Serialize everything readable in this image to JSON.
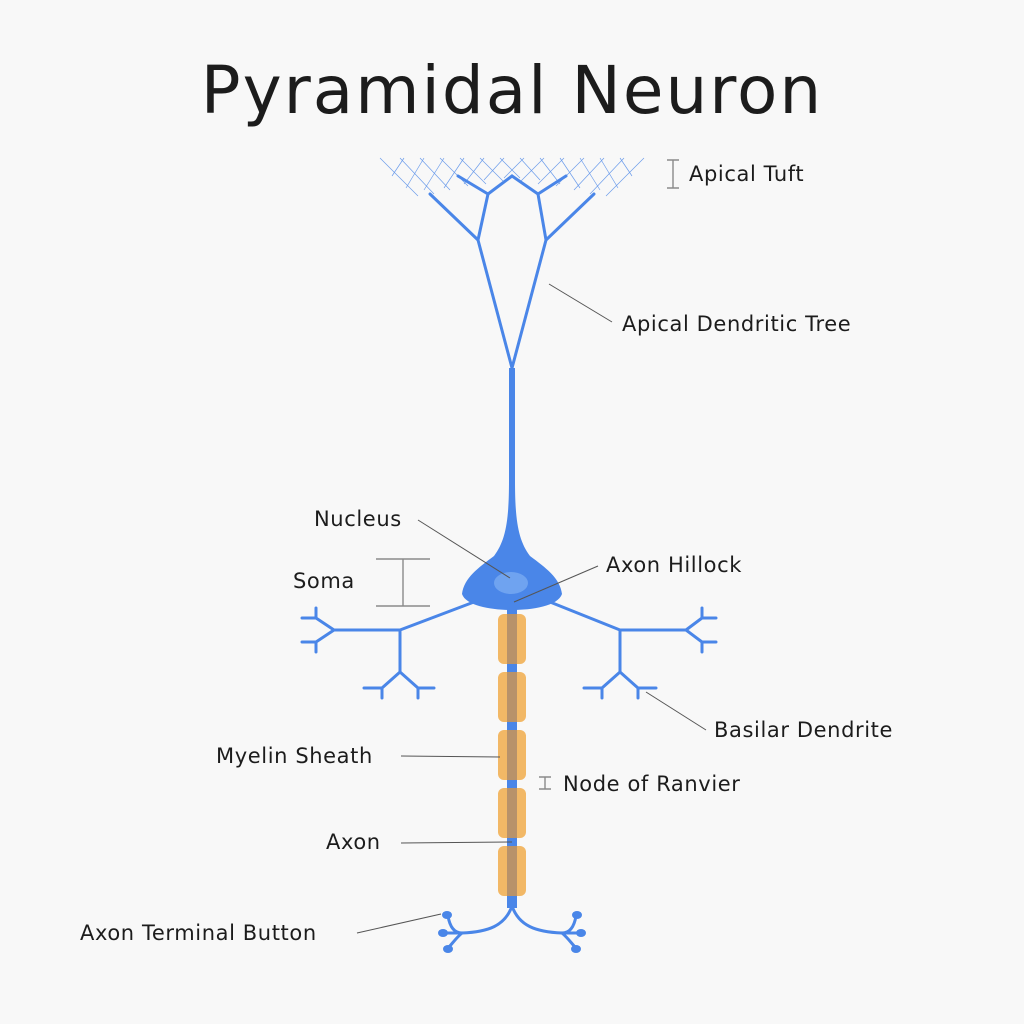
{
  "title": "Pyramidal Neuron",
  "labels": {
    "apical_tuft": "Apical Tuft",
    "apical_dendritic_tree": "Apical Dendritic Tree",
    "nucleus": "Nucleus",
    "soma": "Soma",
    "axon_hillock": "Axon Hillock",
    "basilar_dendrite": "Basilar Dendrite",
    "myelin_sheath": "Myelin Sheath",
    "node_of_ranvier": "Node of Ranvier",
    "axon": "Axon",
    "axon_terminal_button": "Axon Terminal Button"
  },
  "colors": {
    "background": "#f8f8f8",
    "neuron": "#4a86e8",
    "nucleus": "#6fa3f0",
    "myelin": "#f2b866",
    "myelin_overlay": "#b8926a",
    "leader": "#555555",
    "text": "#1c1c1c"
  }
}
